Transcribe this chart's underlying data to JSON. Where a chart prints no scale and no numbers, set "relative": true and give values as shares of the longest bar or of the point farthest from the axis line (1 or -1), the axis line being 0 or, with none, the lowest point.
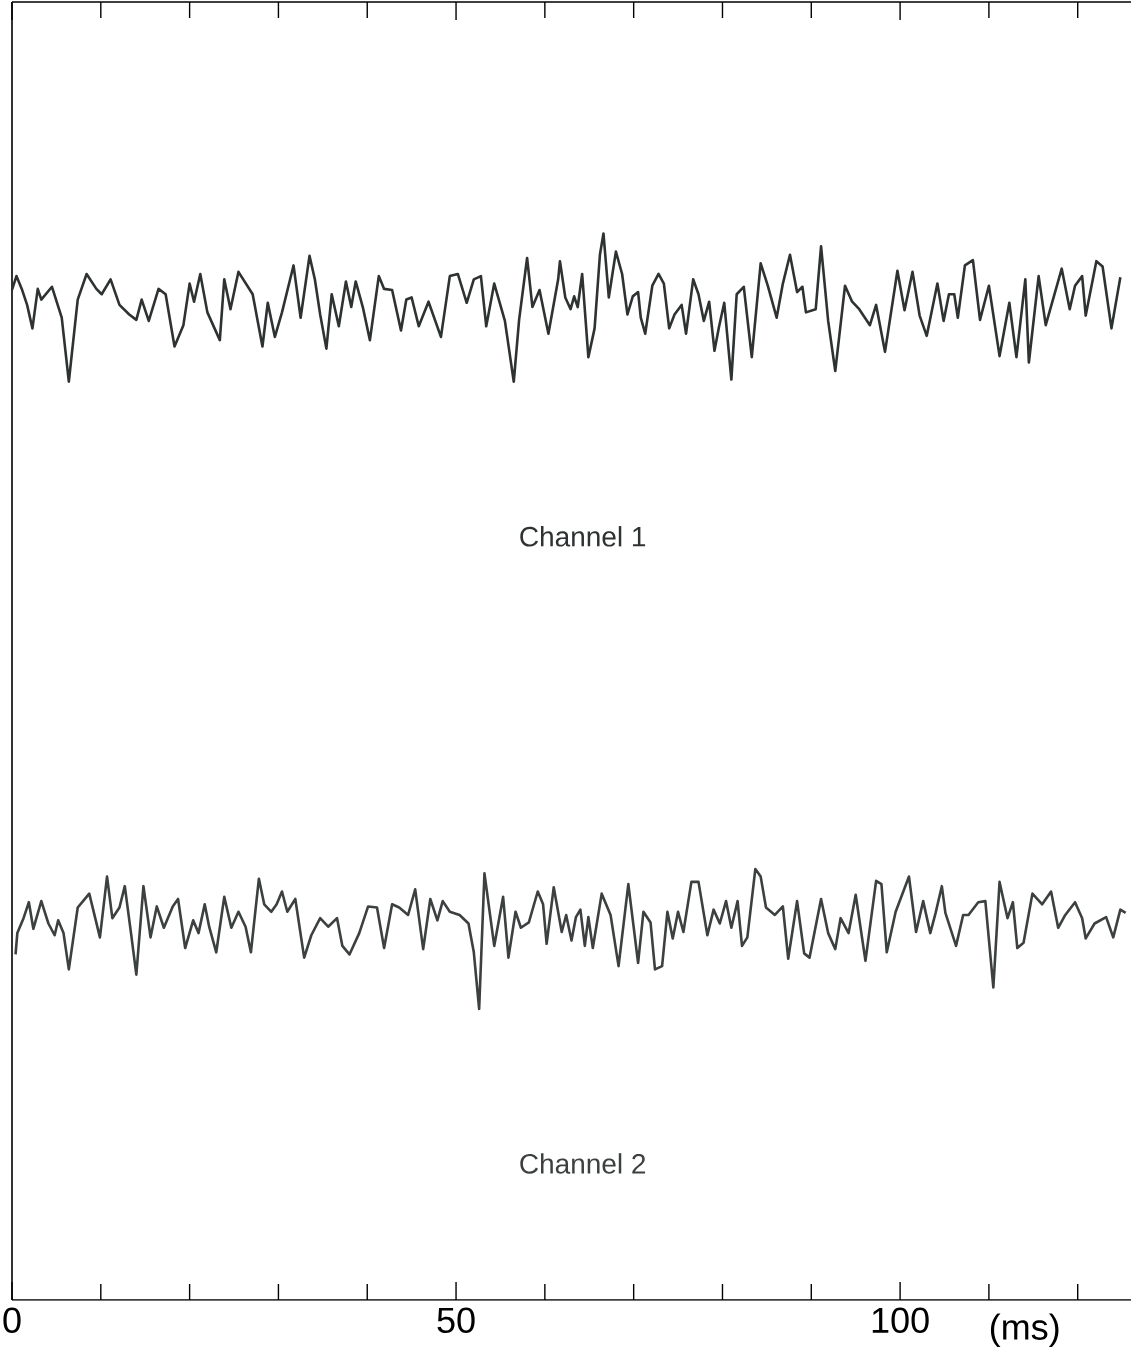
{
  "chart_data": {
    "type": "line",
    "relative": true,
    "xlabel": "(ms)",
    "xlim": [
      0,
      126
    ],
    "xticks": [
      0,
      {
        "value": 10,
        "label": null
      },
      {
        "value": 20,
        "label": null
      },
      {
        "value": 30,
        "label": null
      },
      {
        "value": 40,
        "label": null
      },
      50,
      {
        "value": 60,
        "label": null
      },
      {
        "value": 70,
        "label": null
      },
      {
        "value": 80,
        "label": null
      },
      {
        "value": 90,
        "label": null
      },
      100,
      {
        "value": 110,
        "label": null
      },
      {
        "value": 120,
        "label": null
      }
    ],
    "marker": "none",
    "line_style": "solid",
    "series": [
      {
        "name": "Channel 1",
        "color": "#2e3233",
        "x": [
          0.0,
          0.5,
          1.1,
          1.7,
          2.3,
          2.9,
          3.3,
          4.5,
          5.6,
          6.4,
          7.4,
          8.4,
          9.5,
          10.1,
          11.1,
          12.1,
          13.2,
          14.0,
          14.6,
          15.4,
          16.5,
          17.3,
          18.3,
          19.3,
          20.0,
          20.5,
          21.2,
          22.0,
          23.4,
          23.9,
          24.6,
          25.5,
          27.1,
          28.2,
          28.8,
          29.6,
          30.4,
          31.7,
          32.5,
          33.5,
          34.1,
          34.7,
          35.4,
          36.0,
          36.8,
          37.6,
          38.2,
          38.7,
          39.5,
          40.3,
          41.3,
          41.9,
          42.8,
          43.8,
          44.4,
          45.0,
          45.8,
          46.9,
          48.3,
          49.3,
          50.2,
          51.2,
          52.0,
          52.8,
          53.4,
          54.3,
          55.5,
          56.5,
          57.1,
          58.0,
          58.6,
          59.4,
          60.4,
          61.5,
          61.7,
          62.3,
          62.9,
          63.3,
          63.7,
          64.2,
          64.9,
          65.6,
          66.2,
          66.6,
          67.2,
          68.0,
          68.7,
          69.3,
          69.9,
          70.5,
          70.8,
          71.3,
          72.1,
          72.8,
          73.4,
          74.0,
          74.6,
          75.4,
          75.9,
          76.7,
          77.3,
          77.9,
          78.5,
          79.1,
          79.6,
          80.2,
          81.0,
          81.6,
          82.4,
          83.3,
          84.3,
          85.1,
          86.1,
          86.8,
          87.6,
          88.4,
          89.0,
          89.4,
          90.5,
          91.1,
          91.9,
          92.7,
          93.8,
          94.6,
          95.4,
          96.6,
          97.3,
          98.3,
          99.7,
          100.5,
          101.4,
          102.2,
          103.0,
          104.2,
          104.9,
          105.5,
          106.1,
          106.5,
          107.3,
          108.2,
          109.0,
          110.0,
          111.2,
          112.3,
          113.1,
          114.1,
          114.5,
          115.6,
          116.4,
          118.2,
          119.1,
          119.7,
          120.5,
          120.9,
          122.1,
          122.8,
          123.8,
          124.8
        ],
        "values": [
          0.947,
          0.96,
          0.948,
          0.933,
          0.911,
          0.948,
          0.938,
          0.95,
          0.921,
          0.861,
          0.938,
          0.962,
          0.948,
          0.943,
          0.957,
          0.933,
          0.924,
          0.919,
          0.938,
          0.918,
          0.948,
          0.943,
          0.894,
          0.914,
          0.953,
          0.936,
          0.962,
          0.926,
          0.9,
          0.957,
          0.929,
          0.964,
          0.943,
          0.894,
          0.935,
          0.903,
          0.926,
          0.97,
          0.921,
          0.979,
          0.957,
          0.924,
          0.892,
          0.943,
          0.913,
          0.955,
          0.931,
          0.955,
          0.931,
          0.9,
          0.96,
          0.948,
          0.947,
          0.909,
          0.938,
          0.94,
          0.913,
          0.936,
          0.903,
          0.96,
          0.962,
          0.935,
          0.957,
          0.96,
          0.913,
          0.953,
          0.918,
          0.861,
          0.919,
          0.977,
          0.931,
          0.947,
          0.906,
          0.957,
          0.974,
          0.94,
          0.929,
          0.941,
          0.931,
          0.962,
          0.884,
          0.911,
          0.98,
          1.0,
          0.94,
          0.983,
          0.962,
          0.924,
          0.941,
          0.945,
          0.921,
          0.906,
          0.951,
          0.962,
          0.953,
          0.911,
          0.924,
          0.933,
          0.906,
          0.957,
          0.943,
          0.918,
          0.936,
          0.89,
          0.912,
          0.935,
          0.863,
          0.943,
          0.95,
          0.884,
          0.972,
          0.951,
          0.921,
          0.953,
          0.98,
          0.945,
          0.95,
          0.926,
          0.929,
          0.988,
          0.918,
          0.871,
          0.951,
          0.936,
          0.929,
          0.914,
          0.933,
          0.889,
          0.965,
          0.928,
          0.964,
          0.923,
          0.904,
          0.953,
          0.918,
          0.943,
          0.943,
          0.921,
          0.97,
          0.975,
          0.919,
          0.951,
          0.885,
          0.935,
          0.884,
          0.957,
          0.879,
          0.96,
          0.914,
          0.967,
          0.929,
          0.951,
          0.96,
          0.923,
          0.974,
          0.969,
          0.911,
          0.959
        ]
      },
      {
        "name": "Channel 2",
        "color": "#3c4040",
        "x": [
          0.4,
          0.6,
          1.3,
          1.9,
          2.4,
          3.3,
          4.1,
          4.8,
          5.2,
          5.8,
          6.4,
          7.4,
          8.0,
          8.7,
          9.9,
          10.7,
          11.3,
          12.1,
          12.7,
          13.4,
          14.0,
          14.8,
          15.6,
          16.3,
          17.1,
          18.1,
          18.7,
          19.5,
          20.4,
          21.0,
          21.7,
          22.2,
          23.0,
          23.9,
          24.7,
          25.5,
          26.3,
          26.9,
          27.8,
          28.4,
          29.2,
          29.8,
          30.4,
          31.0,
          31.9,
          32.9,
          33.7,
          34.7,
          35.6,
          36.6,
          37.2,
          38.0,
          39.1,
          40.1,
          41.1,
          41.9,
          42.8,
          43.6,
          44.6,
          45.4,
          46.3,
          47.1,
          47.9,
          48.5,
          49.3,
          50.4,
          51.4,
          52.0,
          52.6,
          53.2,
          54.3,
          55.3,
          55.9,
          56.7,
          57.3,
          58.2,
          59.2,
          59.8,
          60.2,
          61.0,
          61.9,
          62.4,
          63.0,
          63.5,
          64.0,
          64.5,
          64.9,
          65.4,
          66.4,
          67.4,
          68.3,
          69.4,
          70.5,
          71.1,
          71.9,
          72.4,
          73.2,
          73.8,
          74.4,
          75.0,
          75.6,
          76.5,
          77.3,
          78.3,
          79.0,
          79.7,
          80.4,
          81.0,
          81.7,
          82.2,
          82.8,
          83.7,
          84.3,
          84.9,
          85.9,
          86.8,
          87.4,
          88.4,
          89.2,
          89.8,
          91.1,
          91.9,
          92.7,
          93.3,
          94.2,
          95.0,
          96.1,
          97.3,
          97.9,
          98.5,
          99.5,
          101.0,
          101.8,
          102.6,
          103.4,
          104.0,
          104.7,
          105.1,
          106.3,
          107.1,
          107.7,
          108.8,
          109.6,
          110.5,
          111.2,
          112.1,
          112.7,
          113.2,
          113.9,
          114.9,
          116.0,
          117.0,
          117.8,
          118.6,
          119.7,
          120.5,
          120.9,
          121.9,
          123.2,
          124.0,
          124.8,
          125.4
        ],
        "values": [
          0.324,
          0.344,
          0.358,
          0.373,
          0.348,
          0.374,
          0.353,
          0.342,
          0.356,
          0.344,
          0.31,
          0.368,
          0.374,
          0.381,
          0.34,
          0.397,
          0.358,
          0.368,
          0.388,
          0.344,
          0.305,
          0.388,
          0.34,
          0.369,
          0.349,
          0.369,
          0.376,
          0.33,
          0.356,
          0.344,
          0.371,
          0.35,
          0.326,
          0.378,
          0.349,
          0.364,
          0.35,
          0.326,
          0.395,
          0.371,
          0.364,
          0.371,
          0.383,
          0.364,
          0.376,
          0.321,
          0.342,
          0.358,
          0.35,
          0.358,
          0.332,
          0.324,
          0.344,
          0.369,
          0.368,
          0.33,
          0.371,
          0.368,
          0.361,
          0.385,
          0.329,
          0.376,
          0.356,
          0.374,
          0.364,
          0.361,
          0.353,
          0.326,
          0.273,
          0.4,
          0.332,
          0.378,
          0.321,
          0.364,
          0.349,
          0.354,
          0.383,
          0.371,
          0.334,
          0.387,
          0.345,
          0.361,
          0.337,
          0.359,
          0.366,
          0.332,
          0.359,
          0.33,
          0.381,
          0.361,
          0.313,
          0.39,
          0.316,
          0.364,
          0.354,
          0.31,
          0.313,
          0.364,
          0.339,
          0.364,
          0.345,
          0.392,
          0.392,
          0.342,
          0.366,
          0.353,
          0.374,
          0.349,
          0.374,
          0.332,
          0.34,
          0.404,
          0.397,
          0.368,
          0.361,
          0.369,
          0.32,
          0.374,
          0.325,
          0.321,
          0.376,
          0.344,
          0.329,
          0.358,
          0.344,
          0.38,
          0.318,
          0.393,
          0.39,
          0.326,
          0.364,
          0.397,
          0.345,
          0.374,
          0.344,
          0.363,
          0.388,
          0.363,
          0.332,
          0.361,
          0.361,
          0.373,
          0.374,
          0.293,
          0.392,
          0.358,
          0.373,
          0.33,
          0.335,
          0.381,
          0.371,
          0.383,
          0.349,
          0.361,
          0.373,
          0.358,
          0.339,
          0.353,
          0.359,
          0.34,
          0.366,
          0.363
        ]
      }
    ]
  }
}
